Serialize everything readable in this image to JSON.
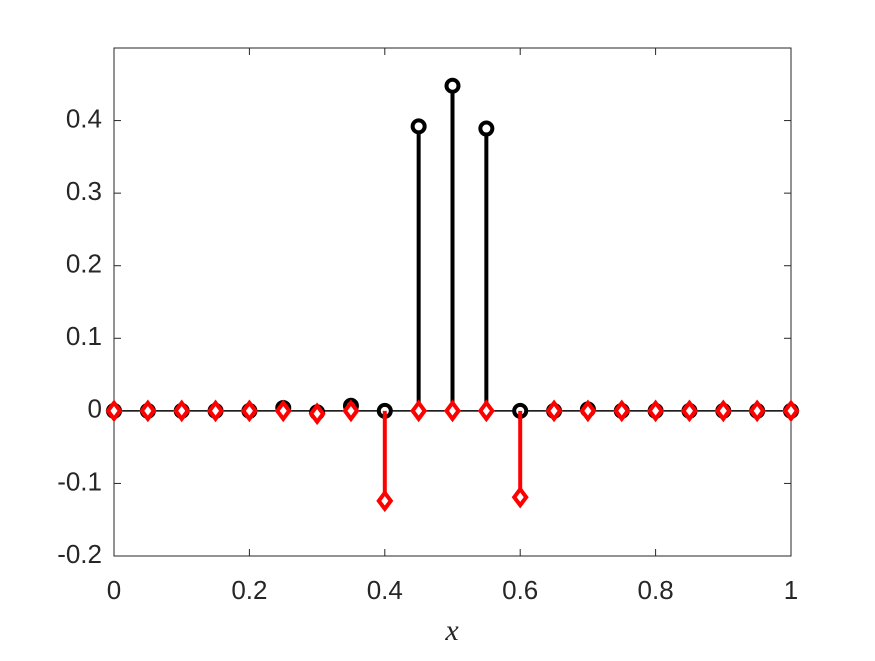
{
  "chart_data": {
    "type": "stem",
    "xlabel": "x",
    "x": [
      0,
      0.05,
      0.1,
      0.15,
      0.2,
      0.25,
      0.3,
      0.35,
      0.4,
      0.45,
      0.5,
      0.55,
      0.6,
      0.65,
      0.7,
      0.75,
      0.8,
      0.85,
      0.9,
      0.95,
      1
    ],
    "series": [
      {
        "color": "#000000",
        "marker": "circle",
        "values": [
          0,
          0,
          0,
          0,
          0,
          0.004,
          -0.002,
          0.007,
          0,
          0.392,
          0.448,
          0.389,
          0,
          0,
          0.002,
          0,
          0,
          0,
          0,
          0,
          0
        ]
      },
      {
        "color": "#ff0000",
        "marker": "diamond",
        "values": [
          0,
          0,
          0,
          0,
          0,
          0,
          -0.004,
          0,
          -0.124,
          0,
          0,
          0,
          -0.119,
          0,
          0,
          0,
          0,
          0,
          0,
          0,
          0
        ]
      }
    ],
    "xlim": [
      0,
      1
    ],
    "xticks": [
      0,
      0.2,
      0.4,
      0.6,
      0.8,
      1
    ],
    "ylim": [
      -0.2,
      0.5
    ],
    "yticks": [
      -0.2,
      -0.1,
      0,
      0.1,
      0.2,
      0.3,
      0.4
    ]
  }
}
